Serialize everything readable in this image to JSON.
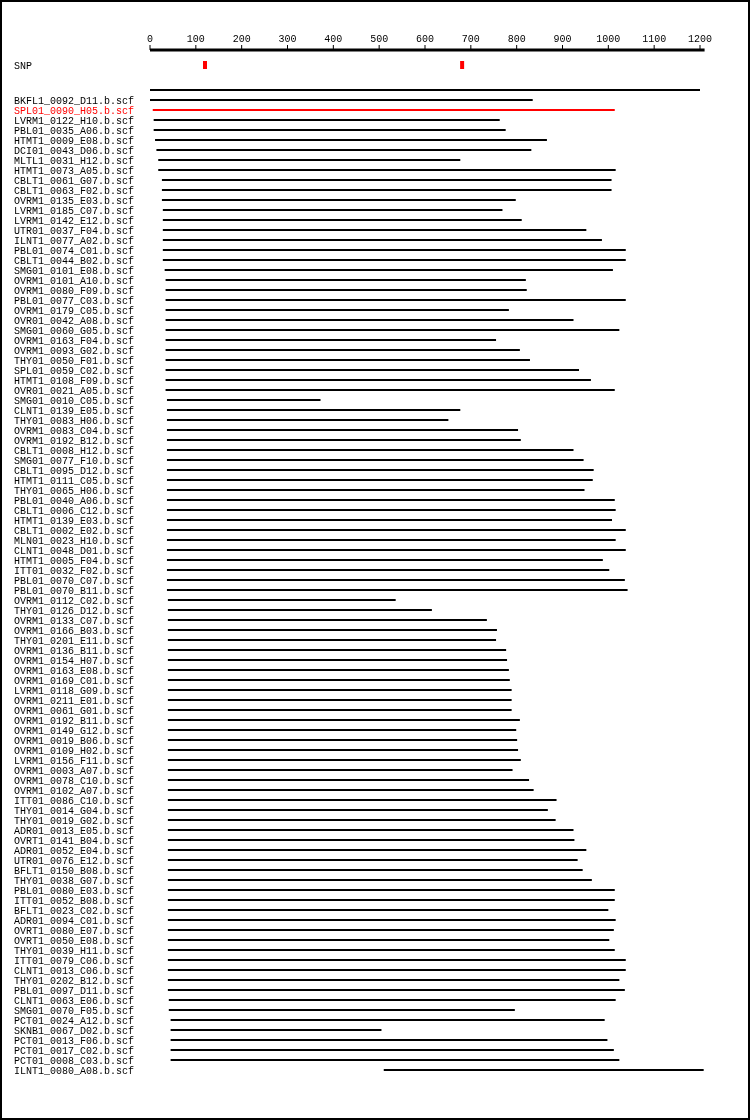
{
  "chart_data": {
    "type": "bar",
    "orientation": "horizontal",
    "xlim": [
      0,
      1210
    ],
    "xticks": [
      0,
      100,
      200,
      300,
      400,
      500,
      600,
      700,
      800,
      900,
      1000,
      1100,
      1200
    ],
    "categories": [
      "SNP",
      null,
      "BKFL1_0092_D11.b.scf",
      "SPL01_0090_H05.b.scf",
      "LVRM1_0122_H10.b.scf",
      "PBL01_0035_A06.b.scf",
      "HTMT1_0009_E08.b.scf",
      "DCI01_0043_D06.b.scf",
      "MLTL1_0031_H12.b.scf",
      "HTMT1_0073_A05.b.scf",
      "CBLT1_0061_G07.b.scf",
      "CBLT1_0063_F02.b.scf",
      "OVRM1_0135_E03.b.scf",
      "LVRM1_0185_C07.b.scf",
      "LVRM1_0142_E12.b.scf",
      "UTR01_0037_F04.b.scf",
      "ILNT1_0077_A02.b.scf",
      "PBL01_0074_C01.b.scf",
      "CBLT1_0044_B02.b.scf",
      "SMG01_0101_E08.b.scf",
      "OVRM1_0101_A10.b.scf",
      "OVRM1_0080_F09.b.scf",
      "PBL01_0077_C03.b.scf",
      "OVRM1_0179_C05.b.scf",
      "OVR01_0042_A08.b.scf",
      "SMG01_0060_G05.b.scf",
      "OVRM1_0163_F04.b.scf",
      "OVRM1_0093_G02.b.scf",
      "THY01_0050_F01.b.scf",
      "SPL01_0059_C02.b.scf",
      "HTMT1_0108_F09.b.scf",
      "OVR01_0021_A05.b.scf",
      "SMG01_0010_C05.b.scf",
      "CLNT1_0139_E05.b.scf",
      "THY01_0083_H06.b.scf",
      "OVRM1_0083_C04.b.scf",
      "OVRM1_0192_B12.b.scf",
      "CBLT1_0008_H12.b.scf",
      "SMG01_0077_F10.b.scf",
      "CBLT1_0095_D12.b.scf",
      "HTMT1_0111_C05.b.scf",
      "THY01_0065_H06.b.scf",
      "PBL01_0040_A06.b.scf",
      "CBLT1_0006_C12.b.scf",
      "HTMT1_0139_E03.b.scf",
      "CBLT1_0002_E02.b.scf",
      "MLN01_0023_H10.b.scf",
      "CLNT1_0048_D01.b.scf",
      "HTMT1_0005_F04.b.scf",
      "ITT01_0032_F02.b.scf",
      "PBL01_0070_C07.b.scf",
      "PBL01_0070_B11.b.scf",
      "OVRM1_0112_C02.b.scf",
      "THY01_0126_D12.b.scf",
      "OVRM1_0133_C07.b.scf",
      "OVRM1_0166_B03.b.scf",
      "THY01_0201_E11.b.scf",
      "OVRM1_0136_B11.b.scf",
      "OVRM1_0154_H07.b.scf",
      "OVRM1_0163_E08.b.scf",
      "OVRM1_0169_C01.b.scf",
      "LVRM1_0118_G09.b.scf",
      "OVRM1_0211_E01.b.scf",
      "OVRM1_0061_G01.b.scf",
      "OVRM1_0192_B11.b.scf",
      "OVRM1_0149_G12.b.scf",
      "OVRM1_0019_B06.b.scf",
      "OVRM1_0109_H02.b.scf",
      "LVRM1_0156_F11.b.scf",
      "OVRM1_0003_A07.b.scf",
      "OVRM1_0078_C10.b.scf",
      "OVRM1_0102_A07.b.scf",
      "ITT01_0086_C10.b.scf",
      "THY01_0014_G04.b.scf",
      "THY01_0019_G02.b.scf",
      "ADR01_0013_E05.b.scf",
      "OVRT1_0141_B04.b.scf",
      "ADR01_0052_E04.b.scf",
      "UTR01_0076_E12.b.scf",
      "BFLT1_0150_B08.b.scf",
      "THY01_0038_G07.b.scf",
      "PBL01_0080_E03.b.scf",
      "ITT01_0052_B08.b.scf",
      "BFLT1_0023_C02.b.scf",
      "ADR01_0094_C01.b.scf",
      "OVRT1_0080_E07.b.scf",
      "OVRT1_0050_E08.b.scf",
      "THY01_0039_H11.b.scf",
      "ITT01_0079_C06.b.scf",
      "CLNT1_0013_C06.b.scf",
      "THY01_0202_B12.b.scf",
      "PBL01_0097_D11.b.scf",
      "CLNT1_0063_E06.b.scf",
      "SMG01_0070_F05.b.scf",
      "PCT01_0024_A12.b.scf",
      "SKNB1_0067_D02.b.scf",
      "PCT01_0013_F06.b.scf",
      "PCT01_0017_C02.b.scf",
      "PCT01_0008_C03.b.scf",
      "ILNT1_0080_A08.b.scf"
    ],
    "series": [
      {
        "type": "bar",
        "base": [
          null,
          0,
          0,
          6,
          8,
          8,
          11,
          14,
          18,
          18,
          26,
          26,
          26,
          28,
          28,
          28,
          28,
          28,
          28,
          32,
          34,
          34,
          34,
          34,
          34,
          34,
          34,
          34,
          34,
          34,
          34,
          34,
          37,
          37,
          37,
          37,
          37,
          37,
          37,
          37,
          37,
          37,
          37,
          37,
          37,
          37,
          37,
          37,
          37,
          37,
          37,
          37,
          39,
          39,
          39,
          39,
          39,
          39,
          39,
          39,
          39,
          39,
          39,
          39,
          39,
          39,
          39,
          39,
          39,
          39,
          39,
          39,
          39,
          39,
          39,
          39,
          39,
          39,
          39,
          39,
          39,
          39,
          39,
          39,
          39,
          39,
          39,
          39,
          39,
          39,
          39,
          39,
          41,
          41,
          45,
          45,
          45,
          45,
          45,
          510
        ],
        "values": [
          null,
          1200,
          835,
          1008,
          755,
          768,
          855,
          818,
          659,
          998,
          981,
          981,
          772,
          741,
          783,
          924,
          958,
          1010,
          1010,
          978,
          786,
          788,
          1004,
          749,
          890,
          990,
          721,
          773,
          795,
          902,
          928,
          980,
          335,
          640,
          614,
          766,
          772,
          887,
          909,
          931,
          929,
          911,
          977,
          979,
          971,
          1001,
          979,
          1001,
          951,
          965,
          999,
          1005,
          497,
          576,
          696,
          718,
          716,
          738,
          740,
          744,
          746,
          750,
          750,
          750,
          768,
          760,
          762,
          764,
          770,
          752,
          788,
          798,
          848,
          829,
          846,
          885,
          887,
          913,
          894,
          905,
          925,
          975,
          975,
          961,
          977,
          973,
          963,
          975,
          999,
          999,
          985,
          997,
          975,
          755,
          947,
          460,
          953,
          967,
          979,
          698
        ],
        "colors": [
          null,
          "#000000",
          "#000000",
          "#ff0000",
          "#000000",
          "#000000",
          "#000000",
          "#000000",
          "#000000",
          "#000000",
          "#000000",
          "#000000",
          "#000000",
          "#000000",
          "#000000",
          "#000000",
          "#000000",
          "#000000",
          "#000000",
          "#000000",
          "#000000",
          "#000000",
          "#000000",
          "#000000",
          "#000000",
          "#000000",
          "#000000",
          "#000000",
          "#000000",
          "#000000",
          "#000000",
          "#000000",
          "#000000",
          "#000000",
          "#000000",
          "#000000",
          "#000000",
          "#000000",
          "#000000",
          "#000000",
          "#000000",
          "#000000",
          "#000000",
          "#000000",
          "#000000",
          "#000000",
          "#000000",
          "#000000",
          "#000000",
          "#000000",
          "#000000",
          "#000000",
          "#000000",
          "#000000",
          "#000000",
          "#000000",
          "#000000",
          "#000000",
          "#000000",
          "#000000",
          "#000000",
          "#000000",
          "#000000",
          "#000000",
          "#000000",
          "#000000",
          "#000000",
          "#000000",
          "#000000",
          "#000000",
          "#000000",
          "#000000",
          "#000000",
          "#000000",
          "#000000",
          "#000000",
          "#000000",
          "#000000",
          "#000000",
          "#000000",
          "#000000",
          "#000000",
          "#000000",
          "#000000",
          "#000000",
          "#000000",
          "#000000",
          "#000000",
          "#000000",
          "#000000",
          "#000000",
          "#000000",
          "#000000",
          "#000000",
          "#000000",
          "#000000",
          "#000000",
          "#000000",
          "#000000",
          "#000000"
        ]
      },
      {
        "type": "scatter",
        "x": [
          "SNP",
          "SNP"
        ],
        "values": [
          120,
          681
        ],
        "color": "#ff0000",
        "marker": "square"
      }
    ]
  }
}
